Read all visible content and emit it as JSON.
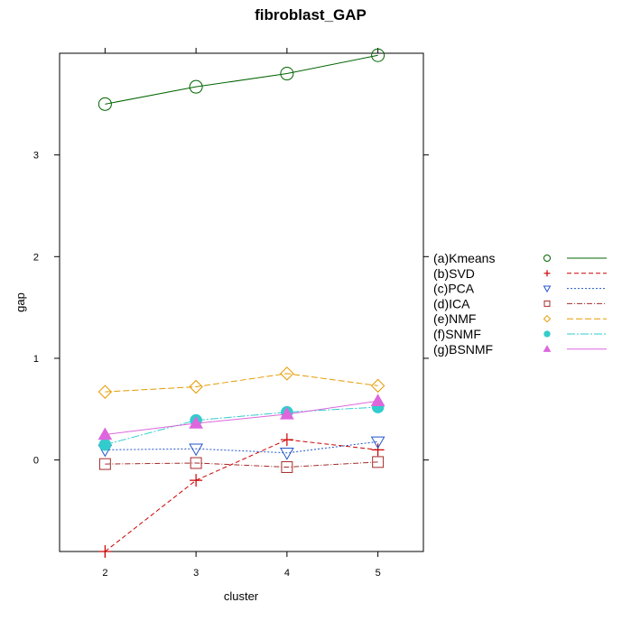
{
  "chart_data": {
    "type": "line",
    "title": "fibroblast_GAP",
    "xlabel": "cluster",
    "ylabel": "gap",
    "x": [
      2,
      3,
      4,
      5
    ],
    "xlim": [
      1.5,
      5.5
    ],
    "ylim": [
      -0.9,
      4.0
    ],
    "xticks": [
      "2",
      "3",
      "4",
      "5"
    ],
    "yticks": [
      "0",
      "1",
      "2",
      "3"
    ],
    "grid": false,
    "legend_position": "right",
    "series": [
      {
        "name": "(a)Kmeans",
        "values": [
          3.5,
          3.67,
          3.8,
          3.98
        ],
        "color": "#006400",
        "marker": "circle",
        "dash": "none"
      },
      {
        "name": "(b)SVD",
        "values": [
          -0.9,
          -0.2,
          0.2,
          0.1
        ],
        "color": "#cc0000",
        "marker": "plus",
        "dash": "5,3"
      },
      {
        "name": "(c)PCA",
        "values": [
          0.1,
          0.11,
          0.07,
          0.18
        ],
        "color": "#2255cc",
        "marker": "triangle-down",
        "dash": "2,2"
      },
      {
        "name": "(d)ICA",
        "values": [
          -0.04,
          -0.03,
          -0.07,
          -0.02
        ],
        "color": "#a52a2a",
        "marker": "square",
        "dash": "6,2,1,2"
      },
      {
        "name": "(e)NMF",
        "values": [
          0.67,
          0.72,
          0.85,
          0.73
        ],
        "color": "#e69a00",
        "marker": "diamond",
        "dash": "7,3"
      },
      {
        "name": "(f)SNMF",
        "values": [
          0.15,
          0.39,
          0.47,
          0.52
        ],
        "color": "#33cccc",
        "marker": "filled-circle",
        "dash": "9,2,2,2"
      },
      {
        "name": "(g)BSNMF",
        "values": [
          0.25,
          0.36,
          0.45,
          0.58
        ],
        "color": "#dd66dd",
        "marker": "filled-triangle",
        "dash": "none"
      }
    ]
  }
}
